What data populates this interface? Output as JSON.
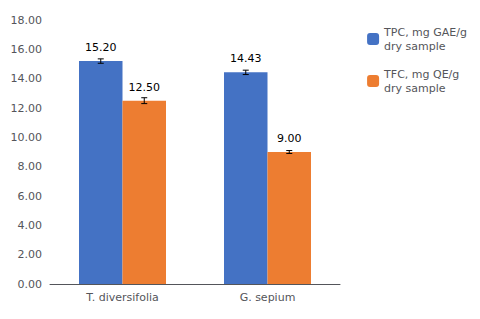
{
  "chart_data": {
    "type": "bar",
    "categories": [
      "T. diversifolia",
      "G. sepium"
    ],
    "series": [
      {
        "name": "TPC, mg GAE/g\ndry sample",
        "color": "#4472C4",
        "values": [
          15.2,
          14.43
        ],
        "value_labels": [
          "15.20",
          "14.43"
        ],
        "errors": [
          0.15,
          0.15
        ]
      },
      {
        "name": "TFC, mg QE/g\ndry sample",
        "color": "#ED7D31",
        "values": [
          12.5,
          9.0
        ],
        "value_labels": [
          "12.50",
          "9.00"
        ],
        "errors": [
          0.2,
          0.1
        ]
      }
    ],
    "ylim": [
      0,
      18
    ],
    "yticks": [
      {
        "value": 0,
        "label": "0.00"
      },
      {
        "value": 2,
        "label": "2.00"
      },
      {
        "value": 4,
        "label": "4.00"
      },
      {
        "value": 6,
        "label": "6.00"
      },
      {
        "value": 8,
        "label": "8.00"
      },
      {
        "value": 10,
        "label": "10.00"
      },
      {
        "value": 12,
        "label": "12.00"
      },
      {
        "value": 14,
        "label": "14.00"
      },
      {
        "value": 16,
        "label": "16.00"
      },
      {
        "value": 18,
        "label": "18.00"
      }
    ],
    "grid": false,
    "data_labels": true,
    "legend": "upper right"
  }
}
